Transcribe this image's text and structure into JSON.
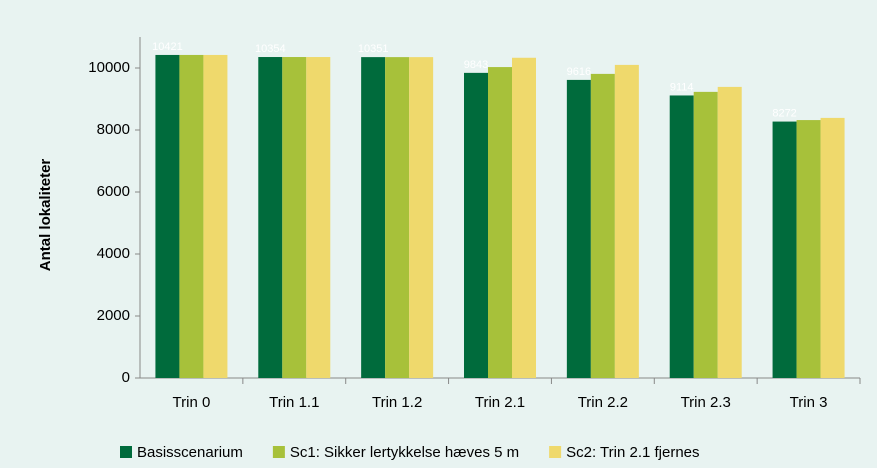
{
  "chart_data": {
    "type": "bar",
    "y_label": "Antal lokaliteter",
    "categories": [
      "Trin 0",
      "Trin 1.1",
      "Trin 1.2",
      "Trin 2.1",
      "Trin 2.2",
      "Trin 2.3",
      "Trin 3"
    ],
    "series": [
      {
        "name": "Basisscenarium",
        "color": "#006b3c",
        "show_labels": true,
        "values": [
          10421,
          10354,
          10351,
          9843,
          9616,
          9114,
          8272
        ]
      },
      {
        "name": "Sc1: Sikker lertykkelse hæves 5 m",
        "color": "#a7c13a",
        "values": [
          10421,
          10354,
          10351,
          10030,
          9810,
          9230,
          8320
        ]
      },
      {
        "name": "Sc2: Trin 2.1 fjernes",
        "color": "#efd96c",
        "values": [
          10421,
          10354,
          10351,
          10330,
          10100,
          9390,
          8390
        ]
      }
    ],
    "ylim": [
      0,
      11000
    ],
    "yticks": [
      0,
      2000,
      4000,
      6000,
      8000,
      10000
    ],
    "grid": false,
    "legend": "bottom"
  }
}
